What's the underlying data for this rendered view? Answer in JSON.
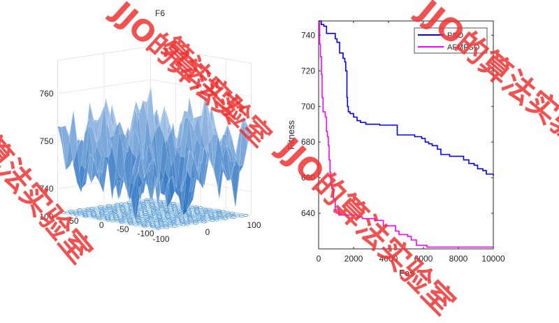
{
  "chart_data": [
    {
      "type": "surface3d",
      "title": "F6",
      "zticks": [
        "740",
        "750",
        "760"
      ],
      "yticks": [
        "100",
        "50",
        "0",
        "-50",
        "-100"
      ],
      "xticks": [
        "-100",
        "0",
        "100"
      ],
      "zlim": [
        735,
        767
      ],
      "xlim": [
        -100,
        100
      ],
      "ylim": [
        -100,
        100
      ],
      "colormap": "blue shades",
      "contour_projection": true,
      "grid": true
    },
    {
      "type": "line",
      "xlabel": "Fes",
      "ylabel": "Fitness",
      "xlim": [
        0,
        10000
      ],
      "ylim": [
        620,
        748
      ],
      "xticks": [
        "0",
        "2000",
        "4000",
        "6000",
        "8000",
        "10000"
      ],
      "yticks": [
        "640",
        "660",
        "680",
        "700",
        "720",
        "740"
      ],
      "legend_position": "top-right",
      "series": [
        {
          "name": "PSO",
          "color": "#0000ff",
          "points": [
            [
              0,
              748
            ],
            [
              150,
              746
            ],
            [
              300,
              745
            ],
            [
              450,
              741
            ],
            [
              900,
              741
            ],
            [
              950,
              738
            ],
            [
              1050,
              736
            ],
            [
              1200,
              730
            ],
            [
              1400,
              727
            ],
            [
              1500,
              725
            ],
            [
              1550,
              720
            ],
            [
              1620,
              705
            ],
            [
              1650,
              700
            ],
            [
              1700,
              697
            ],
            [
              1800,
              696
            ],
            [
              2000,
              694
            ],
            [
              2200,
              692
            ],
            [
              2400,
              691
            ],
            [
              2700,
              690
            ],
            [
              3300,
              690
            ],
            [
              3500,
              689.5
            ],
            [
              4400,
              689.5
            ],
            [
              4500,
              684
            ],
            [
              5300,
              684
            ],
            [
              5500,
              683
            ],
            [
              5900,
              682
            ],
            [
              6100,
              680
            ],
            [
              6300,
              679
            ],
            [
              6500,
              678
            ],
            [
              6800,
              676
            ],
            [
              7000,
              673
            ],
            [
              7300,
              673
            ],
            [
              7500,
              672
            ],
            [
              8200,
              672
            ],
            [
              8300,
              670
            ],
            [
              8600,
              668
            ],
            [
              8900,
              667
            ],
            [
              9100,
              665
            ],
            [
              9400,
              664
            ],
            [
              9600,
              662
            ],
            [
              10000,
              661
            ]
          ]
        },
        {
          "name": "AFMPSO",
          "color": "#ff00ff",
          "points": [
            [
              0,
              748
            ],
            [
              60,
              735
            ],
            [
              100,
              728
            ],
            [
              160,
              718
            ],
            [
              200,
              705
            ],
            [
              250,
              697
            ],
            [
              380,
              694
            ],
            [
              450,
              686
            ],
            [
              500,
              683
            ],
            [
              560,
              678
            ],
            [
              600,
              670
            ],
            [
              650,
              663
            ],
            [
              700,
              656
            ],
            [
              750,
              654
            ],
            [
              850,
              648
            ],
            [
              950,
              642
            ],
            [
              1150,
              639
            ],
            [
              2100,
              639
            ],
            [
              2200,
              638
            ],
            [
              2500,
              637
            ],
            [
              3100,
              637
            ],
            [
              3200,
              636
            ],
            [
              3600,
              636
            ],
            [
              3700,
              633
            ],
            [
              4300,
              633
            ],
            [
              4400,
              630
            ],
            [
              4600,
              628
            ],
            [
              5100,
              627
            ],
            [
              5300,
              625
            ],
            [
              5600,
              622
            ],
            [
              6200,
              621
            ],
            [
              10000,
              621
            ]
          ]
        }
      ]
    }
  ],
  "watermarks": [
    "算法实验室",
    "JJO的算法实验室",
    "JJO的算法实",
    "算法实验室",
    "JJO的算法实验室"
  ]
}
